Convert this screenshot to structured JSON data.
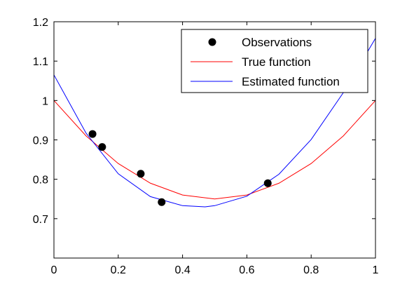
{
  "chart_data": {
    "type": "line",
    "title": "",
    "xlabel": "",
    "ylabel": "",
    "xlim": [
      0,
      1
    ],
    "ylim": [
      0.6,
      1.2
    ],
    "grid": false,
    "legend_position": "top-right",
    "x_ticks": [
      "0",
      "0.2",
      "0.4",
      "0.6",
      "0.8",
      "1"
    ],
    "y_ticks": [
      "0.7",
      "0.8",
      "0.9",
      "1",
      "1.1",
      "1.2"
    ],
    "series": [
      {
        "name": "Observations",
        "kind": "scatter",
        "color": "#000000",
        "points": [
          {
            "x": 0.12,
            "y": 0.915
          },
          {
            "x": 0.15,
            "y": 0.882
          },
          {
            "x": 0.27,
            "y": 0.814
          },
          {
            "x": 0.335,
            "y": 0.742
          },
          {
            "x": 0.665,
            "y": 0.79
          }
        ]
      },
      {
        "name": "True function",
        "kind": "line",
        "color": "#ff0000",
        "points": [
          {
            "x": 0.0,
            "y": 1.0
          },
          {
            "x": 0.1,
            "y": 0.91
          },
          {
            "x": 0.2,
            "y": 0.84
          },
          {
            "x": 0.3,
            "y": 0.79
          },
          {
            "x": 0.4,
            "y": 0.76
          },
          {
            "x": 0.5,
            "y": 0.75
          },
          {
            "x": 0.6,
            "y": 0.76
          },
          {
            "x": 0.7,
            "y": 0.79
          },
          {
            "x": 0.8,
            "y": 0.84
          },
          {
            "x": 0.9,
            "y": 0.91
          },
          {
            "x": 1.0,
            "y": 1.0
          }
        ]
      },
      {
        "name": "Estimated function",
        "kind": "line",
        "color": "#0000ff",
        "points": [
          {
            "x": 0.0,
            "y": 1.065
          },
          {
            "x": 0.1,
            "y": 0.917
          },
          {
            "x": 0.2,
            "y": 0.814
          },
          {
            "x": 0.3,
            "y": 0.756
          },
          {
            "x": 0.4,
            "y": 0.733
          },
          {
            "x": 0.47,
            "y": 0.73
          },
          {
            "x": 0.5,
            "y": 0.733
          },
          {
            "x": 0.6,
            "y": 0.757
          },
          {
            "x": 0.7,
            "y": 0.813
          },
          {
            "x": 0.8,
            "y": 0.901
          },
          {
            "x": 0.9,
            "y": 1.02
          },
          {
            "x": 1.0,
            "y": 1.158
          }
        ]
      }
    ]
  }
}
